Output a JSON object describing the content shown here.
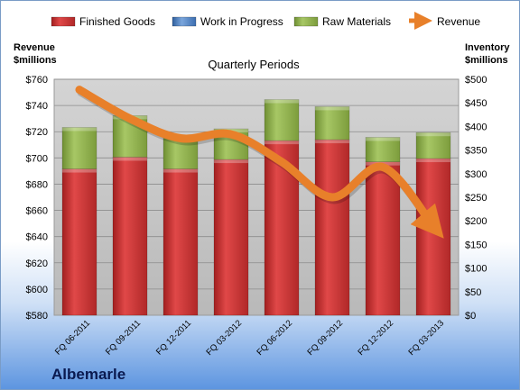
{
  "chart_data": {
    "type": "bar",
    "subtitle": "Quarterly Periods",
    "company": "Albemarle",
    "left_axis_label": [
      "Revenue",
      "$millions"
    ],
    "right_axis_label": [
      "Inventory",
      "$millions"
    ],
    "categories": [
      "FQ 06-2011",
      "FQ 09-2011",
      "FQ 12-2011",
      "FQ 03-2012",
      "FQ 06-2012",
      "FQ 09-2012",
      "FQ 12-2012",
      "FQ 03-2013"
    ],
    "left_ticks": [
      "$580",
      "$600",
      "$620",
      "$640",
      "$660",
      "$680",
      "$700",
      "$720",
      "$740",
      "$760"
    ],
    "right_ticks": [
      "$0",
      "$50",
      "$100",
      "$150",
      "$200",
      "$250",
      "$300",
      "$350",
      "$400",
      "$450",
      "$500"
    ],
    "ylim_left": [
      580,
      760
    ],
    "ylim_right": [
      0,
      500
    ],
    "grid": true,
    "legend_position": "top",
    "series": [
      {
        "name": "Finished Goods",
        "axis": "right",
        "stacked": true,
        "color": "#d63a3a",
        "values": [
          310,
          335,
          310,
          330,
          370,
          372,
          325,
          332
        ]
      },
      {
        "name": "Work in Progress",
        "axis": "right",
        "stacked": true,
        "color": "#4f81bd",
        "values": [
          0,
          0,
          0,
          0,
          0,
          0,
          0,
          0
        ]
      },
      {
        "name": "Raw Materials",
        "axis": "right",
        "stacked": true,
        "color": "#9bbb59",
        "values": [
          88,
          88,
          72,
          65,
          87,
          70,
          52,
          55
        ]
      },
      {
        "name": "Revenue",
        "axis": "left",
        "type": "line",
        "color": "#e8802a",
        "values": [
          752,
          730,
          715,
          718,
          697,
          670,
          693,
          648
        ]
      }
    ]
  }
}
